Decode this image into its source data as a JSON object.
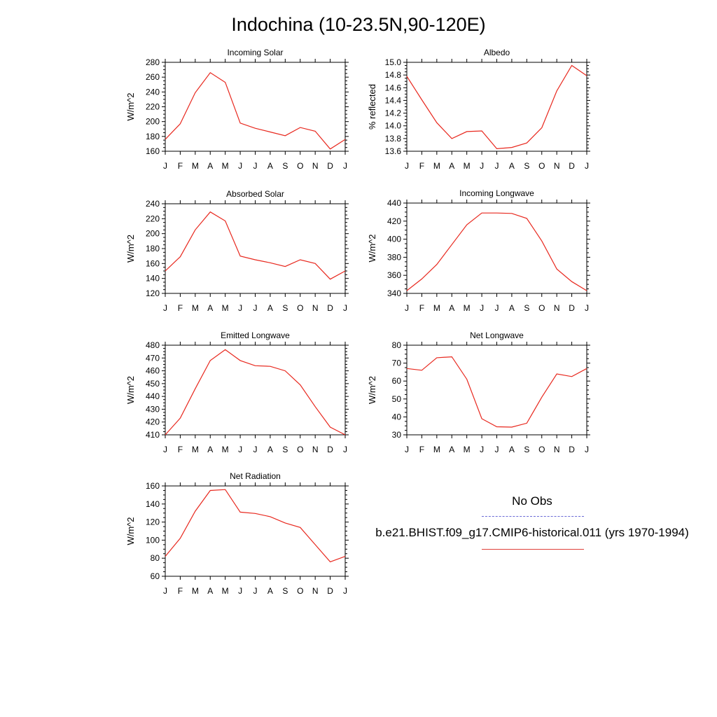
{
  "page": {
    "title": "Indochina (10-23.5N,90-120E)"
  },
  "legend": {
    "entries": [
      {
        "label": "No Obs",
        "style": "dashed",
        "color": "#6b6bd6"
      },
      {
        "label": "b.e21.BHIST.f09_g17.CMIP6-historical.011 (yrs 1970-1994)",
        "style": "solid",
        "color": "#e0403a"
      }
    ]
  },
  "colors": {
    "series": "#e8281e",
    "axis": "#000000"
  },
  "chart_data": [
    {
      "type": "line",
      "title": "Incoming Solar",
      "xlabel": "",
      "ylabel": "W/m^2",
      "categories": [
        "J",
        "F",
        "M",
        "A",
        "M",
        "J",
        "J",
        "A",
        "S",
        "O",
        "N",
        "D",
        "J"
      ],
      "ylim": [
        160,
        280
      ],
      "yticks": [
        160,
        180,
        200,
        220,
        240,
        260,
        280
      ],
      "ytick_labels": [
        "160",
        "180",
        "200",
        "220",
        "240",
        "260",
        "280"
      ],
      "series": [
        {
          "values": [
            176,
            197,
            239,
            266,
            253,
            198,
            191,
            186,
            181,
            192,
            187,
            163,
            176
          ]
        }
      ]
    },
    {
      "type": "line",
      "title": "Albedo",
      "xlabel": "",
      "ylabel": "% reflected",
      "categories": [
        "J",
        "F",
        "M",
        "A",
        "M",
        "J",
        "J",
        "A",
        "S",
        "O",
        "N",
        "D",
        "J"
      ],
      "ylim": [
        13.6,
        15.0
      ],
      "yticks": [
        13.6,
        13.8,
        14.0,
        14.2,
        14.4,
        14.6,
        14.8,
        15.0
      ],
      "ytick_labels": [
        "13.6",
        "13.8",
        "14.0",
        "14.2",
        "14.4",
        "14.6",
        "14.8",
        "15.0"
      ],
      "series": [
        {
          "values": [
            14.78,
            14.41,
            14.05,
            13.8,
            13.91,
            13.92,
            13.64,
            13.66,
            13.73,
            13.97,
            14.55,
            14.95,
            14.79
          ]
        }
      ]
    },
    {
      "type": "line",
      "title": "Absorbed Solar",
      "xlabel": "",
      "ylabel": "W/m^2",
      "categories": [
        "J",
        "F",
        "M",
        "A",
        "M",
        "J",
        "J",
        "A",
        "S",
        "O",
        "N",
        "D",
        "J"
      ],
      "ylim": [
        120,
        240
      ],
      "yticks": [
        120,
        140,
        160,
        180,
        200,
        220,
        240
      ],
      "ytick_labels": [
        "120",
        "140",
        "160",
        "180",
        "200",
        "220",
        "240"
      ],
      "series": [
        {
          "values": [
            150,
            169,
            205,
            229,
            217,
            170,
            165,
            161,
            156,
            165,
            160,
            139,
            150
          ]
        }
      ]
    },
    {
      "type": "line",
      "title": "Incoming Longwave",
      "xlabel": "",
      "ylabel": "W/m^2",
      "categories": [
        "J",
        "F",
        "M",
        "A",
        "M",
        "J",
        "J",
        "A",
        "S",
        "O",
        "N",
        "D",
        "J"
      ],
      "ylim": [
        340,
        440
      ],
      "yticks": [
        340,
        360,
        380,
        400,
        420,
        440
      ],
      "ytick_labels": [
        "340",
        "360",
        "380",
        "400",
        "420",
        "440"
      ],
      "series": [
        {
          "values": [
            343,
            356,
            372,
            394,
            416,
            429,
            429,
            428.5,
            423,
            398,
            367,
            353,
            343
          ]
        }
      ]
    },
    {
      "type": "line",
      "title": "Emitted Longwave",
      "xlabel": "",
      "ylabel": "W/m^2",
      "categories": [
        "J",
        "F",
        "M",
        "A",
        "M",
        "J",
        "J",
        "A",
        "S",
        "O",
        "N",
        "D",
        "J"
      ],
      "ylim": [
        410,
        480
      ],
      "yticks": [
        410,
        420,
        430,
        440,
        450,
        460,
        470,
        480
      ],
      "ytick_labels": [
        "410",
        "420",
        "430",
        "440",
        "450",
        "460",
        "470",
        "480"
      ],
      "series": [
        {
          "values": [
            410,
            423,
            446,
            468,
            476.5,
            468,
            464,
            463.5,
            460,
            449,
            432,
            416,
            410
          ]
        }
      ]
    },
    {
      "type": "line",
      "title": "Net Longwave",
      "xlabel": "",
      "ylabel": "W/m^2",
      "categories": [
        "J",
        "F",
        "M",
        "A",
        "M",
        "J",
        "J",
        "A",
        "S",
        "O",
        "N",
        "D",
        "J"
      ],
      "ylim": [
        30,
        80
      ],
      "yticks": [
        30,
        40,
        50,
        60,
        70,
        80
      ],
      "ytick_labels": [
        "30",
        "40",
        "50",
        "60",
        "70",
        "80"
      ],
      "series": [
        {
          "values": [
            67,
            66,
            73,
            73.5,
            61,
            39,
            34.5,
            34.3,
            36.5,
            51,
            64,
            62.5,
            67
          ]
        }
      ]
    },
    {
      "type": "line",
      "title": "Net Radiation",
      "xlabel": "",
      "ylabel": "W/m^2",
      "categories": [
        "J",
        "F",
        "M",
        "A",
        "M",
        "J",
        "J",
        "A",
        "S",
        "O",
        "N",
        "D",
        "J"
      ],
      "ylim": [
        60,
        160
      ],
      "yticks": [
        60,
        80,
        100,
        120,
        140,
        160
      ],
      "ytick_labels": [
        "60",
        "80",
        "100",
        "120",
        "140",
        "160"
      ],
      "series": [
        {
          "values": [
            82,
            102,
            132,
            155,
            156,
            131,
            129.5,
            126,
            119,
            114,
            95,
            76,
            82
          ]
        }
      ]
    }
  ]
}
